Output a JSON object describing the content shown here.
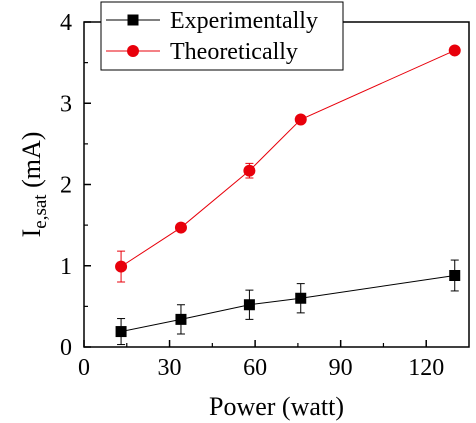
{
  "chart_data": {
    "type": "line",
    "x": [
      13,
      34,
      58,
      76,
      130
    ],
    "xlabel": "Power (watt)",
    "ylabel": {
      "main": "I",
      "sub": "e,sat",
      "unit": " (mA)"
    },
    "xlim": [
      0,
      135
    ],
    "ylim": [
      0,
      4
    ],
    "xticks": [
      0,
      30,
      60,
      90,
      120
    ],
    "yticks": [
      0,
      1,
      2,
      3,
      4
    ],
    "grid": false,
    "legend_position": "top-left",
    "series": [
      {
        "name": "Experimentally",
        "color": "#000000",
        "marker": "square",
        "values": [
          0.19,
          0.34,
          0.52,
          0.6,
          0.88
        ],
        "error": [
          0.16,
          0.18,
          0.18,
          0.18,
          0.19
        ]
      },
      {
        "name": "Theoretically",
        "color": "#e8000b",
        "marker": "circle",
        "values": [
          0.99,
          1.47,
          2.17,
          2.8,
          3.65
        ],
        "error": [
          0.19,
          0.0,
          0.09,
          0.0,
          0.0
        ]
      }
    ]
  }
}
